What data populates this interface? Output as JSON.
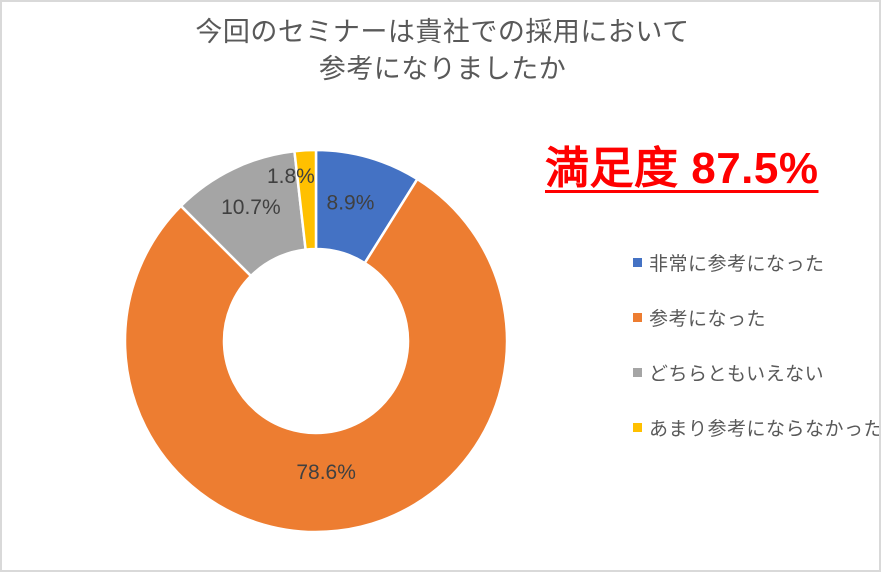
{
  "title": {
    "line1": "今回のセミナーは貴社での採用において",
    "line2": "参考になりましたか"
  },
  "headline": {
    "text": "満足度 87.5%",
    "color": "#FF0000"
  },
  "chart_data": {
    "type": "pie",
    "subtype": "doughnut",
    "title": "今回のセミナーは貴社での採用において 参考になりましたか",
    "categories": [
      "非常に参考になった",
      "参考になった",
      "どちらともいえない",
      "あまり参考にならなかった"
    ],
    "values": [
      8.9,
      78.6,
      10.7,
      1.8
    ],
    "unit": "%",
    "labels": [
      "8.9%",
      "78.6%",
      "10.7%",
      "1.8%"
    ],
    "colors": [
      "#4472C4",
      "#ED7D31",
      "#A5A5A5",
      "#FFC000"
    ],
    "label_color": "#404040",
    "start_angle_deg": 0,
    "direction": "clockwise",
    "hole_ratio": 0.48,
    "legend_position": "right",
    "annotation": "満足度 87.5%"
  }
}
